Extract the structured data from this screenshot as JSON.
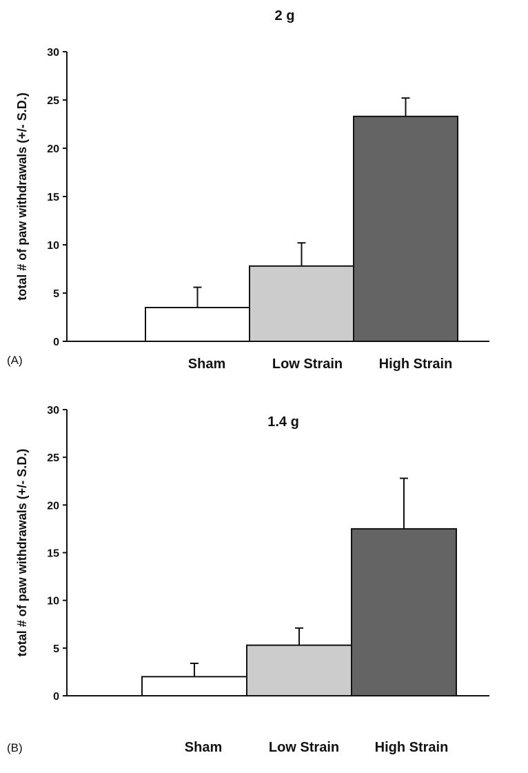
{
  "chart_data": [
    {
      "panel_label": "(A)",
      "type": "bar",
      "title": "2 g",
      "ylabel": "total # of paw withdrawals (+/- S.D.)",
      "xlabel": "",
      "ylim": [
        0,
        30
      ],
      "yticks": [
        0,
        5,
        10,
        15,
        20,
        25,
        30
      ],
      "categories": [
        "Sham",
        "Low Strain",
        "High Strain"
      ],
      "values": [
        3.5,
        7.8,
        23.3
      ],
      "errors": [
        2.1,
        2.4,
        1.9
      ],
      "colors": [
        "#ffffff",
        "#cccccc",
        "#646464"
      ],
      "grid": false,
      "legend": "none"
    },
    {
      "panel_label": "(B)",
      "type": "bar",
      "title": "1.4 g",
      "ylabel": "total # of paw withdrawals (+/- S.D.)",
      "xlabel": "",
      "ylim": [
        0,
        30
      ],
      "yticks": [
        0,
        5,
        10,
        15,
        20,
        25,
        30
      ],
      "categories": [
        "Sham",
        "Low Strain",
        "High Strain"
      ],
      "values": [
        2.0,
        5.3,
        17.5
      ],
      "errors": [
        1.4,
        1.8,
        5.3
      ],
      "colors": [
        "#ffffff",
        "#cccccc",
        "#646464"
      ],
      "grid": false,
      "legend": "none"
    }
  ]
}
